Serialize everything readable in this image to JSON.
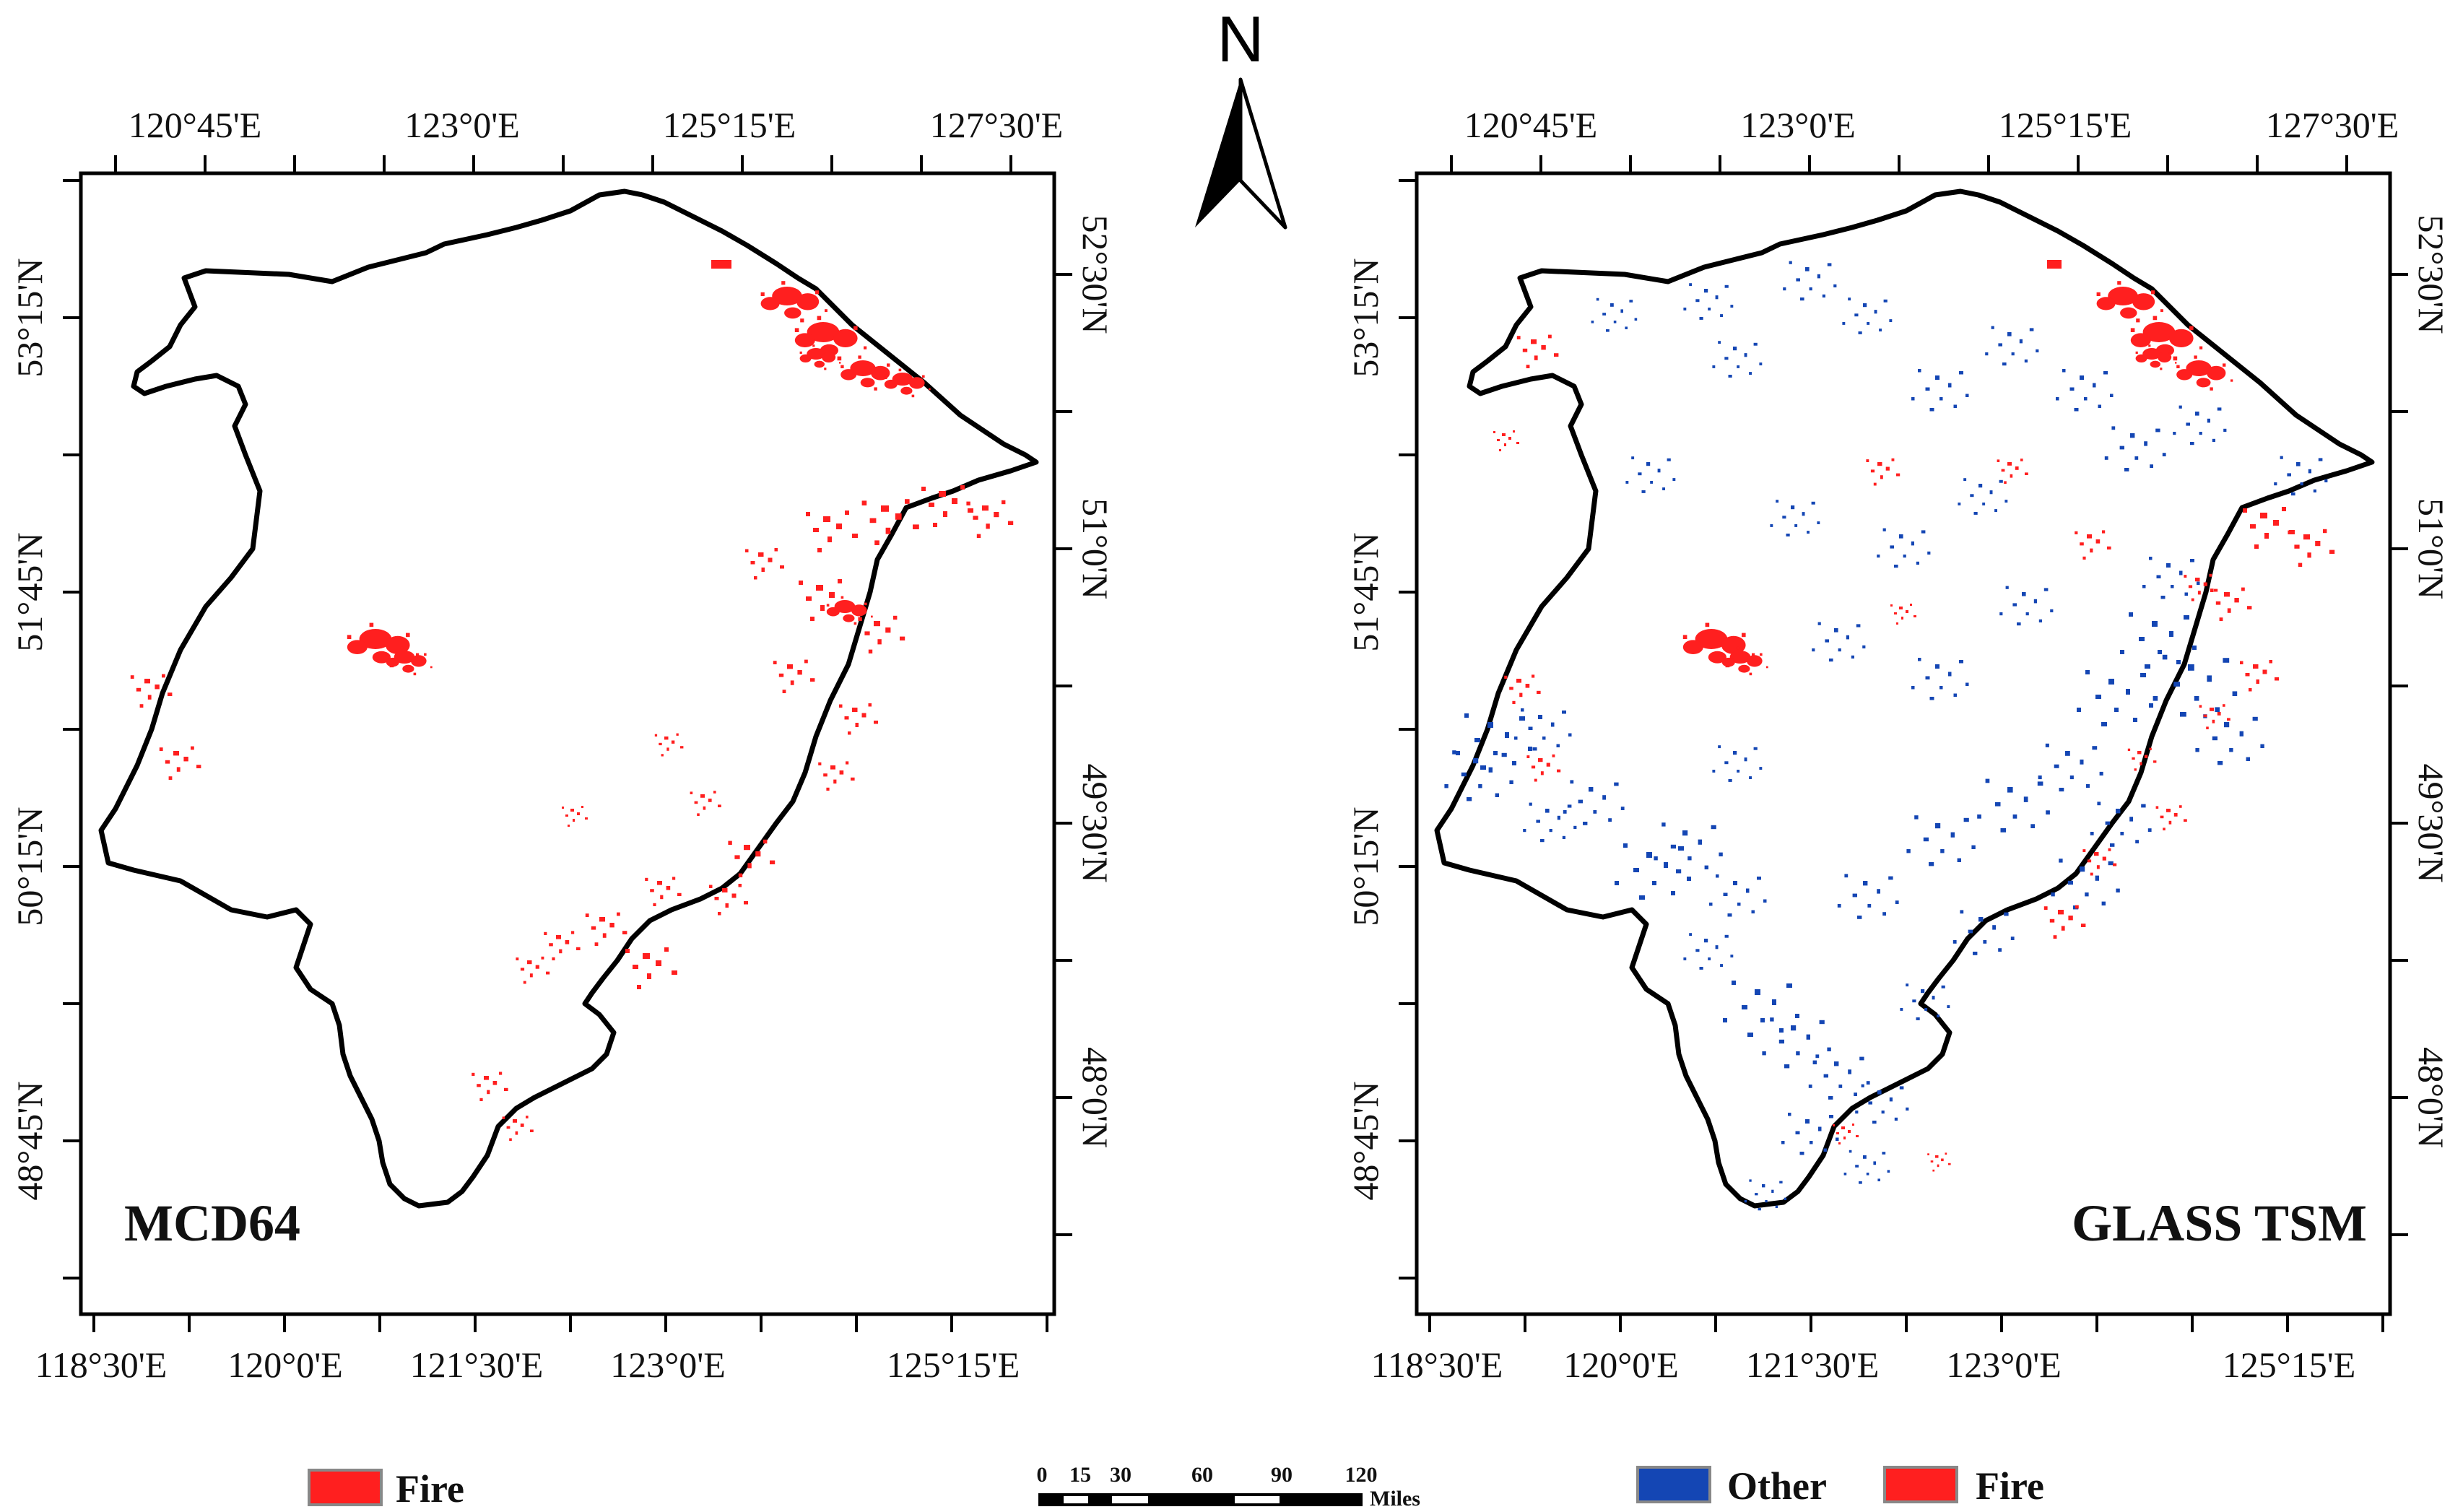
{
  "panels": [
    {
      "label": "MCD64",
      "top_lon_labels": [
        "120°45'E",
        "123°0'E",
        "125°15'E",
        "127°30'E"
      ],
      "bottom_lon_labels": [
        "118°30'E",
        "120°0'E",
        "121°30'E",
        "123°0'E",
        "125°15'E"
      ],
      "left_lat_labels": [
        "53°15'N",
        "51°45'N",
        "50°15'N",
        "48°45'N"
      ],
      "right_lat_labels": [
        "52°30'N",
        "51°0'N",
        "49°30'N",
        "48°0'N"
      ]
    },
    {
      "label": "GLASS TSM",
      "top_lon_labels": [
        "120°45'E",
        "123°0'E",
        "125°15'E",
        "127°30'E"
      ],
      "bottom_lon_labels": [
        "118°30'E",
        "120°0'E",
        "121°30'E",
        "123°0'E",
        "125°15'E"
      ],
      "left_lat_labels": [
        "53°15'N",
        "51°45'N",
        "50°15'N",
        "48°45'N"
      ],
      "right_lat_labels": [
        "52°30'N",
        "51°0'N",
        "49°30'N",
        "48°0'N"
      ]
    }
  ],
  "north_arrow": {
    "letter": "N"
  },
  "scale_bar": {
    "ticks": [
      "0",
      "15",
      "30",
      "60",
      "90",
      "120"
    ],
    "unit": "Miles"
  },
  "legend_left": [
    {
      "label": "Fire",
      "color": "#ff1f1f"
    }
  ],
  "legend_right": [
    {
      "label": "Other",
      "color": "#1446b4"
    },
    {
      "label": "Fire",
      "color": "#ff1f1f"
    }
  ],
  "colors": {
    "fire": "#ff1f1f",
    "other": "#1446b4",
    "boundary": "#000000"
  }
}
